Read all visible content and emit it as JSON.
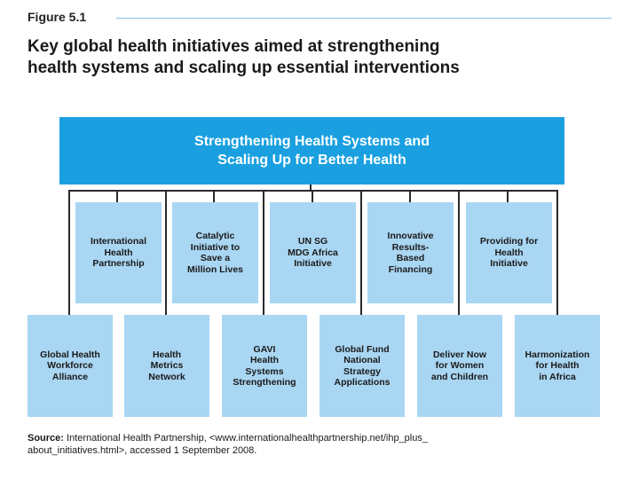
{
  "figure_label": "Figure 5.1",
  "title": {
    "line1": "Key global health initiatives aimed at strengthening",
    "line2": "health systems and scaling up essential interventions"
  },
  "top_box": {
    "line1": "Strengthening Health Systems and",
    "line2": "Scaling Up for Better Health"
  },
  "upper_row": [
    {
      "lines": [
        "International",
        "Health",
        "Partnership"
      ]
    },
    {
      "lines": [
        "Catalytic",
        "Initiative to",
        "Save a",
        "Million Lives"
      ]
    },
    {
      "lines": [
        "UN SG",
        "MDG Africa",
        "Initiative"
      ]
    },
    {
      "lines": [
        "Innovative",
        "Results-",
        "Based",
        "Financing"
      ]
    },
    {
      "lines": [
        "Providing for",
        "Health",
        "Initiative"
      ]
    }
  ],
  "lower_row": [
    {
      "lines": [
        "Global Health",
        "Workforce",
        "Alliance"
      ]
    },
    {
      "lines": [
        "Health",
        "Metrics",
        "Network"
      ]
    },
    {
      "lines": [
        "GAVI",
        "Health",
        "Systems",
        "Strengthening"
      ]
    },
    {
      "lines": [
        "Global Fund",
        "National",
        "Strategy",
        "Applications"
      ]
    },
    {
      "lines": [
        "Deliver Now",
        "for Women",
        "and Children"
      ]
    },
    {
      "lines": [
        "Harmonization",
        "for Health",
        "in Africa"
      ]
    }
  ],
  "source": {
    "label": "Source:",
    "line1": " International Health Partnership, <www.internationalhealthpartnership.net/ihp_plus_",
    "line2": "about_initiatives.html>, accessed 1 September 2008."
  },
  "colors": {
    "top_box": "#1aa0e0",
    "boxes": "#a9d6f2",
    "rule": "#7fc3e6"
  }
}
